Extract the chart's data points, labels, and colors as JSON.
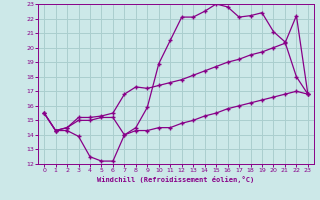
{
  "xlabel": "Windchill (Refroidissement éolien,°C)",
  "xlim": [
    -0.5,
    23.5
  ],
  "ylim": [
    12,
    23
  ],
  "xticks": [
    0,
    1,
    2,
    3,
    4,
    5,
    6,
    7,
    8,
    9,
    10,
    11,
    12,
    13,
    14,
    15,
    16,
    17,
    18,
    19,
    20,
    21,
    22,
    23
  ],
  "yticks": [
    12,
    13,
    14,
    15,
    16,
    17,
    18,
    19,
    20,
    21,
    22,
    23
  ],
  "bg_color": "#cce8e8",
  "grid_color": "#aacece",
  "line_color": "#880088",
  "line1_x": [
    0,
    1,
    2,
    3,
    4,
    5,
    6,
    7,
    8,
    9,
    10,
    11,
    12,
    13,
    14,
    15,
    16,
    17,
    18,
    19,
    20,
    21,
    22,
    23
  ],
  "line1_y": [
    15.5,
    14.3,
    14.3,
    13.9,
    12.5,
    12.2,
    12.2,
    14.0,
    14.5,
    15.9,
    18.9,
    20.5,
    22.1,
    22.1,
    22.5,
    23.0,
    22.8,
    22.1,
    22.2,
    22.4,
    21.1,
    20.4,
    18.0,
    16.8
  ],
  "line2_x": [
    0,
    1,
    2,
    3,
    4,
    5,
    6,
    7,
    8,
    9,
    10,
    11,
    12,
    13,
    14,
    15,
    16,
    17,
    18,
    19,
    20,
    21,
    22,
    23
  ],
  "line2_y": [
    15.5,
    14.3,
    14.5,
    15.2,
    15.2,
    15.3,
    15.5,
    16.8,
    17.3,
    17.2,
    17.4,
    17.6,
    17.8,
    18.1,
    18.4,
    18.7,
    19.0,
    19.2,
    19.5,
    19.7,
    20.0,
    20.3,
    22.2,
    16.8
  ],
  "line3_x": [
    0,
    1,
    2,
    3,
    4,
    5,
    6,
    7,
    8,
    9,
    10,
    11,
    12,
    13,
    14,
    15,
    16,
    17,
    18,
    19,
    20,
    21,
    22,
    23
  ],
  "line3_y": [
    15.5,
    14.3,
    14.5,
    15.0,
    15.0,
    15.2,
    15.2,
    14.0,
    14.3,
    14.3,
    14.5,
    14.5,
    14.8,
    15.0,
    15.3,
    15.5,
    15.8,
    16.0,
    16.2,
    16.4,
    16.6,
    16.8,
    17.0,
    16.8
  ]
}
